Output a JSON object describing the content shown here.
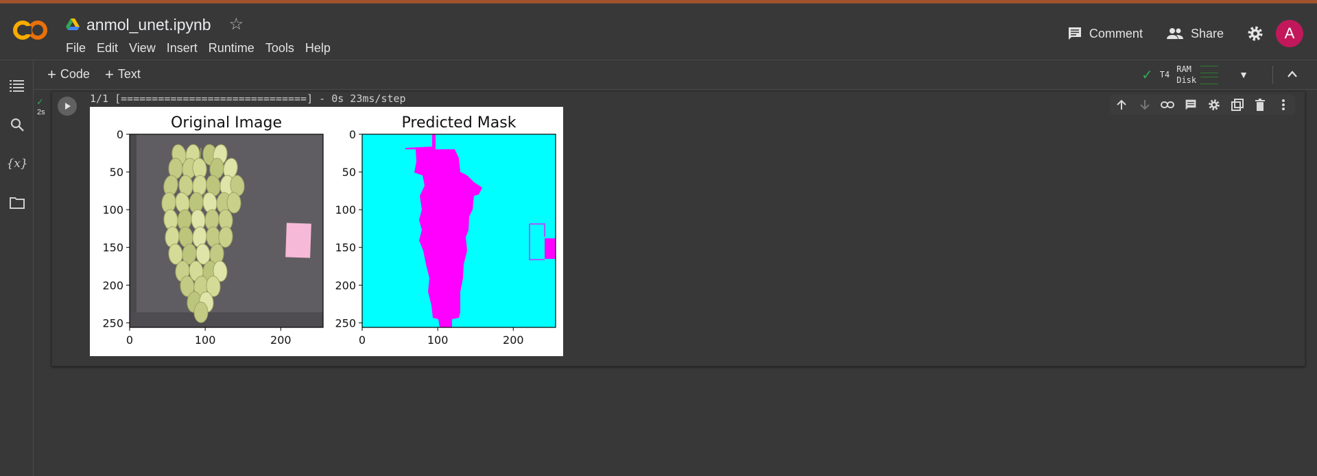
{
  "header": {
    "title": "anmol_unet.ipynb",
    "menu": [
      "File",
      "Edit",
      "View",
      "Insert",
      "Runtime",
      "Tools",
      "Help"
    ],
    "comment_label": "Comment",
    "share_label": "Share",
    "avatar_letter": "A",
    "logo_text": "CO"
  },
  "toolbar": {
    "code_label": "Code",
    "text_label": "Text",
    "runtime": {
      "gpu": "T4",
      "ram_label": "RAM",
      "disk_label": "Disk"
    }
  },
  "cell": {
    "exec_time": "2s",
    "output_line": "1/1 [==============================] - 0s 23ms/step"
  },
  "chart_data": [
    {
      "type": "image",
      "title": "Original Image",
      "xticks": [
        0,
        100,
        200
      ],
      "yticks": [
        0,
        50,
        100,
        150,
        200,
        250
      ],
      "xlim": [
        0,
        256
      ],
      "ylim": [
        256,
        0
      ],
      "content": "photo of green grape bunch on dark grey surface with small pink square"
    },
    {
      "type": "image",
      "title": "Predicted Mask",
      "xticks": [
        0,
        100,
        200
      ],
      "yticks": [
        0,
        50,
        100,
        150,
        200,
        250
      ],
      "xlim": [
        0,
        256
      ],
      "ylim": [
        256,
        0
      ],
      "colors": {
        "background": "#00ffff",
        "object": "#ff00ff"
      }
    }
  ],
  "colors": {
    "accent_green": "#34a853",
    "avatar": "#c2185b",
    "logo_orange": "#f9ab00"
  }
}
